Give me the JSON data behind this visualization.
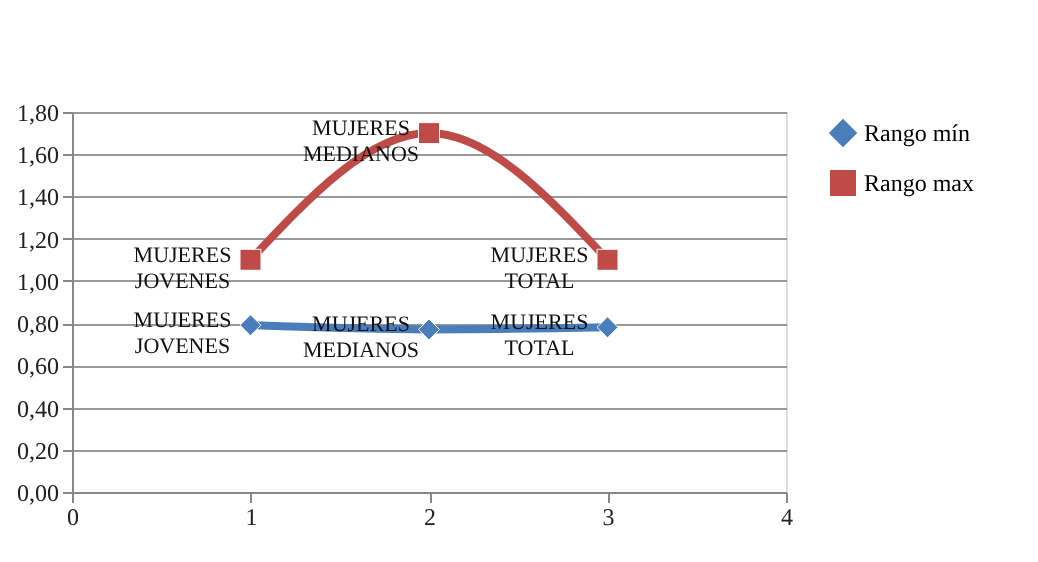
{
  "chart_data": {
    "type": "line",
    "x": [
      1,
      2,
      3
    ],
    "series": [
      {
        "name": "Rango mín",
        "color": "#4a7ebb",
        "values": [
          0.79,
          0.77,
          0.78
        ],
        "marker": "diamond"
      },
      {
        "name": "Rango max",
        "color": "#be4b48",
        "values": [
          1.1,
          1.7,
          1.1
        ],
        "marker": "square"
      }
    ],
    "xlim": [
      0,
      4
    ],
    "xticks": [
      0,
      1,
      2,
      3,
      4
    ],
    "ylim": [
      0,
      1.8
    ],
    "yticks": [
      {
        "value": 0,
        "label": "0,00"
      },
      {
        "value": 0.2,
        "label": "0,20"
      },
      {
        "value": 0.4,
        "label": "0,40"
      },
      {
        "value": 0.6,
        "label": "0,60"
      },
      {
        "value": 0.8,
        "label": "0,80"
      },
      {
        "value": 1.0,
        "label": "1,00"
      },
      {
        "value": 1.2,
        "label": "1,20"
      },
      {
        "value": 1.4,
        "label": "1,40"
      },
      {
        "value": 1.6,
        "label": "1,60"
      },
      {
        "value": 1.8,
        "label": "1,80"
      }
    ],
    "annotations": [
      {
        "text": "MUJERES\nJOVENES",
        "x": 1,
        "y": 1.1
      },
      {
        "text": "MUJERES\nMEDIANOS",
        "x": 2,
        "y": 1.7
      },
      {
        "text": "MUJERES\nTOTAL",
        "x": 3,
        "y": 1.1
      },
      {
        "text": "MUJERES\nJOVENES",
        "x": 1,
        "y": 0.79
      },
      {
        "text": "MUJERES\nMEDIANOS",
        "x": 2,
        "y": 0.77
      },
      {
        "text": "MUJERES\nTOTAL",
        "x": 3,
        "y": 0.78
      }
    ],
    "grid": "y",
    "legend": "right",
    "line_style": "solid"
  }
}
